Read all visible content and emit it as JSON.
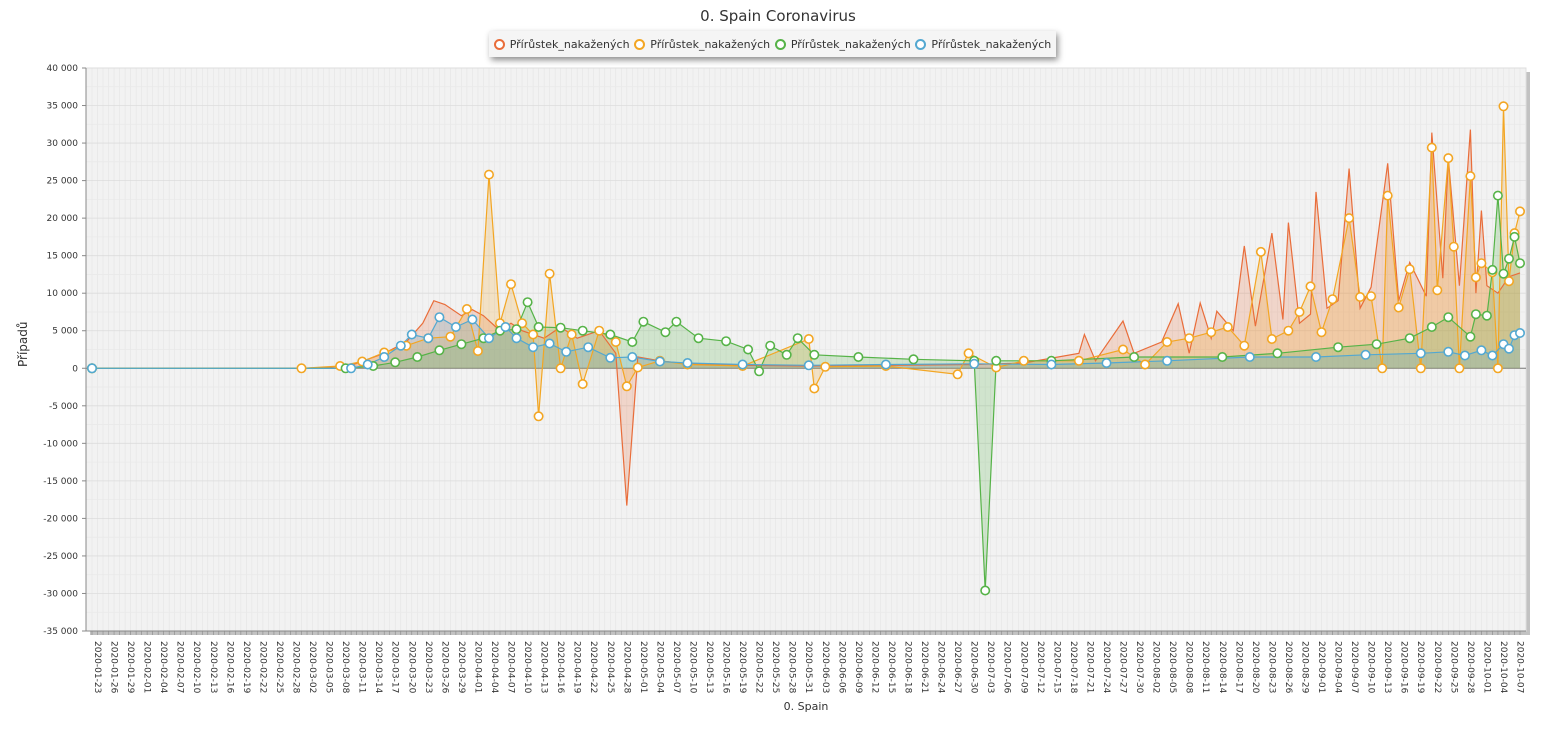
{
  "chart_data": {
    "type": "area",
    "title": "0. Spain Coronavirus",
    "xlabel": "0. Spain",
    "ylabel": "Případů",
    "ylim": [
      -35000,
      40000
    ],
    "ytick_step": 5000,
    "ytick_labels": [
      "40 000",
      "35 000",
      "30 000",
      "25 000",
      "20 000",
      "15 000",
      "10 000",
      "5 000",
      "0",
      "-5 000",
      "-10 000",
      "-15 000",
      "-20 000",
      "-25 000",
      "-30 000",
      "-35 000"
    ],
    "x_start": "2020-01-23",
    "x_end": "2020-10-08",
    "x_tick_every_days": 3,
    "legend_position": "top",
    "grid": true,
    "series": [
      {
        "name": "Přírůstek_nakažených",
        "color": "#e96d3a",
        "markers": false,
        "points": [
          [
            "2020-01-23",
            0
          ],
          [
            "2020-03-01",
            0
          ],
          [
            "2020-03-05",
            100
          ],
          [
            "2020-03-10",
            400
          ],
          [
            "2020-03-13",
            1200
          ],
          [
            "2020-03-16",
            2000
          ],
          [
            "2020-03-20",
            3500
          ],
          [
            "2020-03-23",
            6000
          ],
          [
            "2020-03-25",
            9000
          ],
          [
            "2020-03-27",
            8500
          ],
          [
            "2020-03-30",
            7000
          ],
          [
            "2020-04-01",
            7800
          ],
          [
            "2020-04-03",
            7000
          ],
          [
            "2020-04-06",
            5000
          ],
          [
            "2020-04-08",
            6000
          ],
          [
            "2020-04-10",
            5000
          ],
          [
            "2020-04-14",
            4000
          ],
          [
            "2020-04-17",
            5500
          ],
          [
            "2020-04-20",
            4000
          ],
          [
            "2020-04-24",
            5000
          ],
          [
            "2020-04-27",
            2000
          ],
          [
            "2020-04-29",
            -18300
          ],
          [
            "2020-05-01",
            1500
          ],
          [
            "2020-05-05",
            1000
          ],
          [
            "2020-05-10",
            600
          ],
          [
            "2020-05-15",
            500
          ],
          [
            "2020-05-20",
            400
          ],
          [
            "2020-06-01",
            300
          ],
          [
            "2020-06-15",
            400
          ],
          [
            "2020-07-01",
            500
          ],
          [
            "2020-07-10",
            700
          ],
          [
            "2020-07-20",
            2000
          ],
          [
            "2020-07-21",
            4500
          ],
          [
            "2020-07-23",
            1000
          ],
          [
            "2020-07-28",
            6300
          ],
          [
            "2020-07-30",
            2000
          ],
          [
            "2020-08-04",
            3500
          ],
          [
            "2020-08-07",
            8600
          ],
          [
            "2020-08-09",
            2000
          ],
          [
            "2020-08-11",
            8700
          ],
          [
            "2020-08-13",
            4000
          ],
          [
            "2020-08-14",
            7600
          ],
          [
            "2020-08-17",
            5000
          ],
          [
            "2020-08-19",
            16300
          ],
          [
            "2020-08-21",
            5600
          ],
          [
            "2020-08-24",
            18000
          ],
          [
            "2020-08-26",
            6500
          ],
          [
            "2020-08-27",
            19400
          ],
          [
            "2020-08-29",
            6000
          ],
          [
            "2020-08-31",
            7200
          ],
          [
            "2020-09-01",
            23500
          ],
          [
            "2020-09-03",
            8000
          ],
          [
            "2020-09-05",
            9000
          ],
          [
            "2020-09-07",
            26600
          ],
          [
            "2020-09-09",
            8000
          ],
          [
            "2020-09-11",
            10800
          ],
          [
            "2020-09-14",
            27300
          ],
          [
            "2020-09-16",
            9000
          ],
          [
            "2020-09-18",
            14100
          ],
          [
            "2020-09-21",
            9600
          ],
          [
            "2020-09-22",
            31400
          ],
          [
            "2020-09-24",
            12000
          ],
          [
            "2020-09-25",
            28000
          ],
          [
            "2020-09-27",
            11000
          ],
          [
            "2020-09-29",
            31800
          ],
          [
            "2020-09-30",
            10000
          ],
          [
            "2020-10-01",
            21000
          ],
          [
            "2020-10-02",
            11000
          ],
          [
            "2020-10-04",
            10000
          ],
          [
            "2020-10-06",
            12200
          ],
          [
            "2020-10-08",
            12700
          ]
        ]
      },
      {
        "name": "Přírůstek_nakažených",
        "color": "#f3a623",
        "markers": true,
        "points": [
          [
            "2020-01-23",
            0
          ],
          [
            "2020-03-01",
            0
          ],
          [
            "2020-03-08",
            300
          ],
          [
            "2020-03-12",
            900
          ],
          [
            "2020-03-16",
            2100
          ],
          [
            "2020-03-20",
            3000
          ],
          [
            "2020-03-24",
            4000
          ],
          [
            "2020-03-28",
            4200
          ],
          [
            "2020-03-31",
            7900
          ],
          [
            "2020-04-02",
            2300
          ],
          [
            "2020-04-04",
            25800
          ],
          [
            "2020-04-06",
            6000
          ],
          [
            "2020-04-08",
            11200
          ],
          [
            "2020-04-10",
            6000
          ],
          [
            "2020-04-12",
            4500
          ],
          [
            "2020-04-13",
            -6400
          ],
          [
            "2020-04-15",
            12600
          ],
          [
            "2020-04-17",
            0
          ],
          [
            "2020-04-19",
            4500
          ],
          [
            "2020-04-21",
            -2100
          ],
          [
            "2020-04-24",
            5000
          ],
          [
            "2020-04-27",
            3500
          ],
          [
            "2020-04-29",
            -2400
          ],
          [
            "2020-05-01",
            100
          ],
          [
            "2020-05-05",
            1000
          ],
          [
            "2020-05-10",
            500
          ],
          [
            "2020-05-20",
            300
          ],
          [
            "2020-06-01",
            3900
          ],
          [
            "2020-06-02",
            -2700
          ],
          [
            "2020-06-04",
            200
          ],
          [
            "2020-06-15",
            300
          ],
          [
            "2020-06-28",
            -800
          ],
          [
            "2020-06-30",
            2000
          ],
          [
            "2020-07-05",
            100
          ],
          [
            "2020-07-10",
            1000
          ],
          [
            "2020-07-20",
            1000
          ],
          [
            "2020-07-28",
            2500
          ],
          [
            "2020-08-01",
            500
          ],
          [
            "2020-08-05",
            3500
          ],
          [
            "2020-08-09",
            4000
          ],
          [
            "2020-08-13",
            4800
          ],
          [
            "2020-08-16",
            5500
          ],
          [
            "2020-08-19",
            3000
          ],
          [
            "2020-08-22",
            15500
          ],
          [
            "2020-08-24",
            3900
          ],
          [
            "2020-08-27",
            5000
          ],
          [
            "2020-08-29",
            7500
          ],
          [
            "2020-08-31",
            10900
          ],
          [
            "2020-09-02",
            4800
          ],
          [
            "2020-09-04",
            9200
          ],
          [
            "2020-09-07",
            20000
          ],
          [
            "2020-09-09",
            9500
          ],
          [
            "2020-09-11",
            9600
          ],
          [
            "2020-09-13",
            0
          ],
          [
            "2020-09-14",
            23000
          ],
          [
            "2020-09-16",
            8100
          ],
          [
            "2020-09-18",
            13200
          ],
          [
            "2020-09-20",
            0
          ],
          [
            "2020-09-22",
            29400
          ],
          [
            "2020-09-23",
            10400
          ],
          [
            "2020-09-25",
            28000
          ],
          [
            "2020-09-26",
            16200
          ],
          [
            "2020-09-27",
            0
          ],
          [
            "2020-09-29",
            25600
          ],
          [
            "2020-09-30",
            12100
          ],
          [
            "2020-10-01",
            14000
          ],
          [
            "2020-10-03",
            12800
          ],
          [
            "2020-10-04",
            0
          ],
          [
            "2020-10-05",
            34900
          ],
          [
            "2020-10-06",
            11600
          ],
          [
            "2020-10-07",
            18000
          ],
          [
            "2020-10-08",
            20900
          ]
        ]
      },
      {
        "name": "Přírůstek_nakažených",
        "color": "#56b348",
        "markers": true,
        "points": [
          [
            "2020-01-23",
            0
          ],
          [
            "2020-03-09",
            0
          ],
          [
            "2020-03-14",
            300
          ],
          [
            "2020-03-18",
            800
          ],
          [
            "2020-03-22",
            1500
          ],
          [
            "2020-03-26",
            2400
          ],
          [
            "2020-03-30",
            3200
          ],
          [
            "2020-04-03",
            4000
          ],
          [
            "2020-04-06",
            5000
          ],
          [
            "2020-04-09",
            5200
          ],
          [
            "2020-04-11",
            8800
          ],
          [
            "2020-04-13",
            5500
          ],
          [
            "2020-04-17",
            5400
          ],
          [
            "2020-04-21",
            5000
          ],
          [
            "2020-04-26",
            4500
          ],
          [
            "2020-04-30",
            3500
          ],
          [
            "2020-05-02",
            6200
          ],
          [
            "2020-05-06",
            4800
          ],
          [
            "2020-05-08",
            6200
          ],
          [
            "2020-05-12",
            4000
          ],
          [
            "2020-05-17",
            3600
          ],
          [
            "2020-05-21",
            2500
          ],
          [
            "2020-05-23",
            -400
          ],
          [
            "2020-05-25",
            3000
          ],
          [
            "2020-05-28",
            1800
          ],
          [
            "2020-05-30",
            4000
          ],
          [
            "2020-06-02",
            1800
          ],
          [
            "2020-06-10",
            1500
          ],
          [
            "2020-06-20",
            1200
          ],
          [
            "2020-07-01",
            1000
          ],
          [
            "2020-07-03",
            -29600
          ],
          [
            "2020-07-05",
            1000
          ],
          [
            "2020-07-15",
            1000
          ],
          [
            "2020-07-30",
            1500
          ],
          [
            "2020-08-15",
            1500
          ],
          [
            "2020-08-25",
            2000
          ],
          [
            "2020-09-05",
            2800
          ],
          [
            "2020-09-12",
            3200
          ],
          [
            "2020-09-18",
            4000
          ],
          [
            "2020-09-22",
            5500
          ],
          [
            "2020-09-25",
            6800
          ],
          [
            "2020-09-29",
            4200
          ],
          [
            "2020-09-30",
            7200
          ],
          [
            "2020-10-02",
            7000
          ],
          [
            "2020-10-03",
            13100
          ],
          [
            "2020-10-04",
            23000
          ],
          [
            "2020-10-05",
            12600
          ],
          [
            "2020-10-06",
            14600
          ],
          [
            "2020-10-07",
            17500
          ],
          [
            "2020-10-08",
            14000
          ]
        ]
      },
      {
        "name": "Přírůstek_nakažených",
        "color": "#53a8d1",
        "markers": true,
        "points": [
          [
            "2020-01-23",
            0
          ],
          [
            "2020-03-10",
            0
          ],
          [
            "2020-03-13",
            500
          ],
          [
            "2020-03-16",
            1500
          ],
          [
            "2020-03-19",
            3000
          ],
          [
            "2020-03-21",
            4500
          ],
          [
            "2020-03-24",
            4000
          ],
          [
            "2020-03-26",
            6800
          ],
          [
            "2020-03-29",
            5500
          ],
          [
            "2020-04-01",
            6500
          ],
          [
            "2020-04-04",
            4000
          ],
          [
            "2020-04-07",
            5500
          ],
          [
            "2020-04-09",
            4000
          ],
          [
            "2020-04-12",
            2800
          ],
          [
            "2020-04-15",
            3300
          ],
          [
            "2020-04-18",
            2200
          ],
          [
            "2020-04-22",
            2800
          ],
          [
            "2020-04-26",
            1400
          ],
          [
            "2020-04-30",
            1500
          ],
          [
            "2020-05-05",
            900
          ],
          [
            "2020-05-10",
            700
          ],
          [
            "2020-05-20",
            500
          ],
          [
            "2020-06-01",
            400
          ],
          [
            "2020-06-15",
            500
          ],
          [
            "2020-07-01",
            600
          ],
          [
            "2020-07-15",
            500
          ],
          [
            "2020-07-25",
            700
          ],
          [
            "2020-08-05",
            1000
          ],
          [
            "2020-08-20",
            1500
          ],
          [
            "2020-09-01",
            1500
          ],
          [
            "2020-09-10",
            1800
          ],
          [
            "2020-09-20",
            2000
          ],
          [
            "2020-09-25",
            2200
          ],
          [
            "2020-09-28",
            1700
          ],
          [
            "2020-10-01",
            2400
          ],
          [
            "2020-10-03",
            1700
          ],
          [
            "2020-10-05",
            3200
          ],
          [
            "2020-10-06",
            2600
          ],
          [
            "2020-10-07",
            4400
          ],
          [
            "2020-10-08",
            4700
          ]
        ]
      }
    ]
  }
}
